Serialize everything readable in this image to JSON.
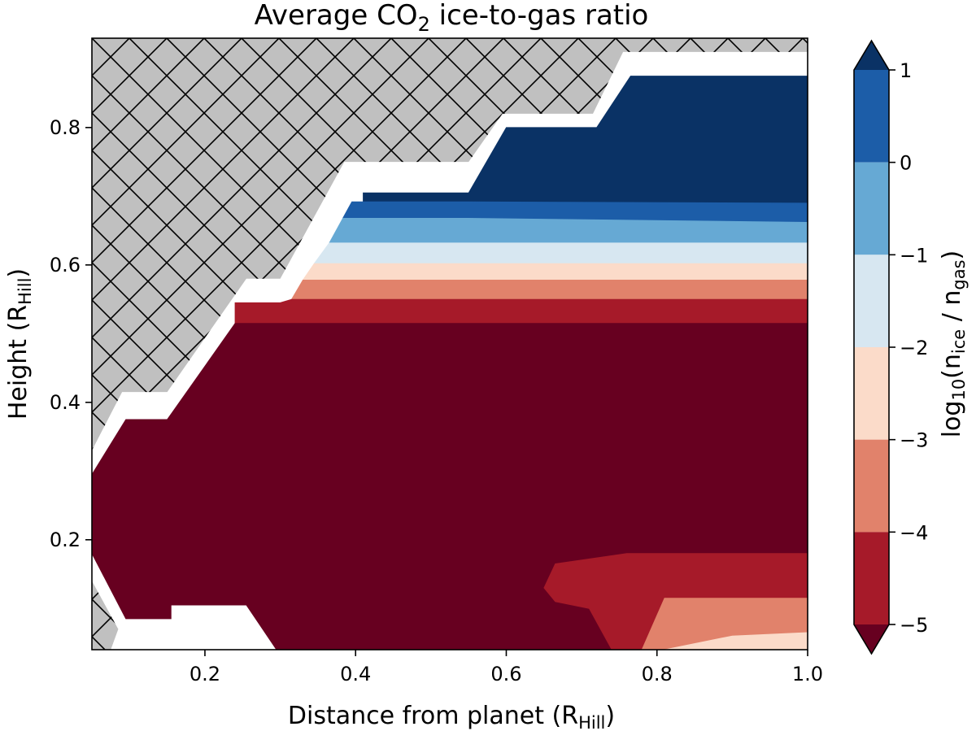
{
  "chart_data": {
    "type": "heatmap",
    "title_main": "Average CO",
    "title_sub": "2",
    "title_tail": " ice-to-gas ratio",
    "xlabel_main": "Distance from planet (R",
    "xlabel_sub": "Hill",
    "xlabel_tail": ")",
    "ylabel_main": "Height (R",
    "ylabel_sub": "Hill",
    "ylabel_tail": ")",
    "xlim": [
      0.05,
      1.0
    ],
    "ylim": [
      0.04,
      0.93
    ],
    "xticks": [
      {
        "value": 0.2,
        "label": "0.2"
      },
      {
        "value": 0.4,
        "label": "0.4"
      },
      {
        "value": 0.6,
        "label": "0.6"
      },
      {
        "value": 0.8,
        "label": "0.8"
      },
      {
        "value": 1.0,
        "label": "1.0"
      }
    ],
    "yticks": [
      {
        "value": 0.2,
        "label": "0.2"
      },
      {
        "value": 0.4,
        "label": "0.4"
      },
      {
        "value": 0.6,
        "label": "0.6"
      },
      {
        "value": 0.8,
        "label": "0.8"
      }
    ],
    "colorbar": {
      "label_pre": "log",
      "label_sub1": "10",
      "label_mid1": "(n",
      "label_sub2": "ice",
      "label_mid2": " / n",
      "label_sub3": "gas",
      "label_post": ")",
      "range": [
        -5,
        1
      ],
      "ticks": [
        {
          "value": 1,
          "label": "1"
        },
        {
          "value": 0,
          "label": "0"
        },
        {
          "value": -1,
          "label": "−1"
        },
        {
          "value": -2,
          "label": "−2"
        },
        {
          "value": -3,
          "label": "−3"
        },
        {
          "value": -4,
          "label": "−4"
        },
        {
          "value": -5,
          "label": "−5"
        }
      ],
      "levels": [
        {
          "from": 0,
          "to": 1,
          "color": "#1c5da8"
        },
        {
          "from": -1,
          "to": 0,
          "color": "#66a9d4"
        },
        {
          "from": -2,
          "to": -1,
          "color": "#d7e7f1"
        },
        {
          "from": -3,
          "to": -2,
          "color": "#fbdbc9"
        },
        {
          "from": -4,
          "to": -3,
          "color": "#e1826b"
        },
        {
          "from": -5,
          "to": -4,
          "color": "#a61a29"
        }
      ],
      "extend_over_color": "#0a3265",
      "extend_under_color": "#670020"
    },
    "colors": {
      "masked_fill": "#c0c0c0",
      "hatch": "#000000",
      "gap": "#ffffff"
    },
    "regions": [
      {
        "level": "over",
        "color": "#0a3265",
        "poly": [
          [
            0.41,
            0.705
          ],
          [
            0.55,
            0.705
          ],
          [
            0.6,
            0.8
          ],
          [
            0.72,
            0.8
          ],
          [
            0.765,
            0.875
          ],
          [
            1.0,
            0.875
          ],
          [
            1.0,
            0.69
          ],
          [
            0.55,
            0.692
          ],
          [
            0.41,
            0.692
          ]
        ]
      },
      {
        "level": "0 to 1",
        "color": "#1c5da8",
        "poly": [
          [
            0.395,
            0.692
          ],
          [
            0.55,
            0.692
          ],
          [
            1.0,
            0.69
          ],
          [
            1.0,
            0.662
          ],
          [
            0.55,
            0.668
          ],
          [
            0.383,
            0.668
          ]
        ]
      },
      {
        "level": "-1 to 0",
        "color": "#66a9d4",
        "poly": [
          [
            0.383,
            0.668
          ],
          [
            0.55,
            0.668
          ],
          [
            1.0,
            0.662
          ],
          [
            1.0,
            0.632
          ],
          [
            0.365,
            0.632
          ]
        ]
      },
      {
        "level": "-2 to -1",
        "color": "#d7e7f1",
        "poly": [
          [
            0.365,
            0.632
          ],
          [
            1.0,
            0.632
          ],
          [
            1.0,
            0.602
          ],
          [
            0.345,
            0.602
          ]
        ]
      },
      {
        "level": "-3 to -2",
        "color": "#fbdbc9",
        "poly": [
          [
            0.345,
            0.602
          ],
          [
            1.0,
            0.602
          ],
          [
            1.0,
            0.578
          ],
          [
            0.33,
            0.578
          ]
        ]
      },
      {
        "level": "-4 to -3",
        "color": "#e1826b",
        "poly": [
          [
            0.33,
            0.578
          ],
          [
            1.0,
            0.578
          ],
          [
            1.0,
            0.55
          ],
          [
            0.315,
            0.55
          ]
        ]
      },
      {
        "level": "-5 to -4",
        "color": "#a61a29",
        "poly": [
          [
            0.315,
            0.55
          ],
          [
            1.0,
            0.55
          ],
          [
            1.0,
            0.515
          ],
          [
            0.24,
            0.515
          ],
          [
            0.24,
            0.545
          ],
          [
            0.3,
            0.545
          ]
        ]
      },
      {
        "level": "under",
        "color": "#670020",
        "poly": [
          [
            0.05,
            0.295
          ],
          [
            0.095,
            0.375
          ],
          [
            0.15,
            0.375
          ],
          [
            0.24,
            0.515
          ],
          [
            1.0,
            0.515
          ],
          [
            1.0,
            0.04
          ],
          [
            0.295,
            0.04
          ],
          [
            0.255,
            0.105
          ],
          [
            0.155,
            0.105
          ],
          [
            0.155,
            0.085
          ],
          [
            0.095,
            0.085
          ],
          [
            0.05,
            0.18
          ]
        ]
      },
      {
        "level": "-5 to -4",
        "color": "#a61a29",
        "poly": [
          [
            0.65,
            0.13
          ],
          [
            0.665,
            0.165
          ],
          [
            0.76,
            0.18
          ],
          [
            1.0,
            0.18
          ],
          [
            1.0,
            0.04
          ],
          [
            0.74,
            0.04
          ],
          [
            0.71,
            0.1
          ],
          [
            0.665,
            0.11
          ]
        ]
      },
      {
        "level": "-4 to -3",
        "color": "#e1826b",
        "poly": [
          [
            0.78,
            0.04
          ],
          [
            0.81,
            0.115
          ],
          [
            1.0,
            0.115
          ],
          [
            1.0,
            0.04
          ]
        ]
      },
      {
        "level": "-3 to -2",
        "color": "#fbdbc9",
        "poly": [
          [
            0.81,
            0.04
          ],
          [
            0.9,
            0.06
          ],
          [
            1.0,
            0.065
          ],
          [
            1.0,
            0.04
          ]
        ]
      }
    ],
    "masked_regions": [
      {
        "poly": [
          [
            0.05,
            0.93
          ],
          [
            1.0,
            0.93
          ],
          [
            1.0,
            0.91
          ],
          [
            0.755,
            0.91
          ],
          [
            0.715,
            0.82
          ],
          [
            0.595,
            0.82
          ],
          [
            0.55,
            0.75
          ],
          [
            0.385,
            0.75
          ],
          [
            0.3,
            0.58
          ],
          [
            0.255,
            0.58
          ],
          [
            0.15,
            0.415
          ],
          [
            0.09,
            0.415
          ],
          [
            0.05,
            0.33
          ]
        ]
      },
      {
        "poly": [
          [
            0.05,
            0.14
          ],
          [
            0.085,
            0.07
          ],
          [
            0.075,
            0.04
          ],
          [
            0.05,
            0.04
          ]
        ]
      }
    ]
  }
}
